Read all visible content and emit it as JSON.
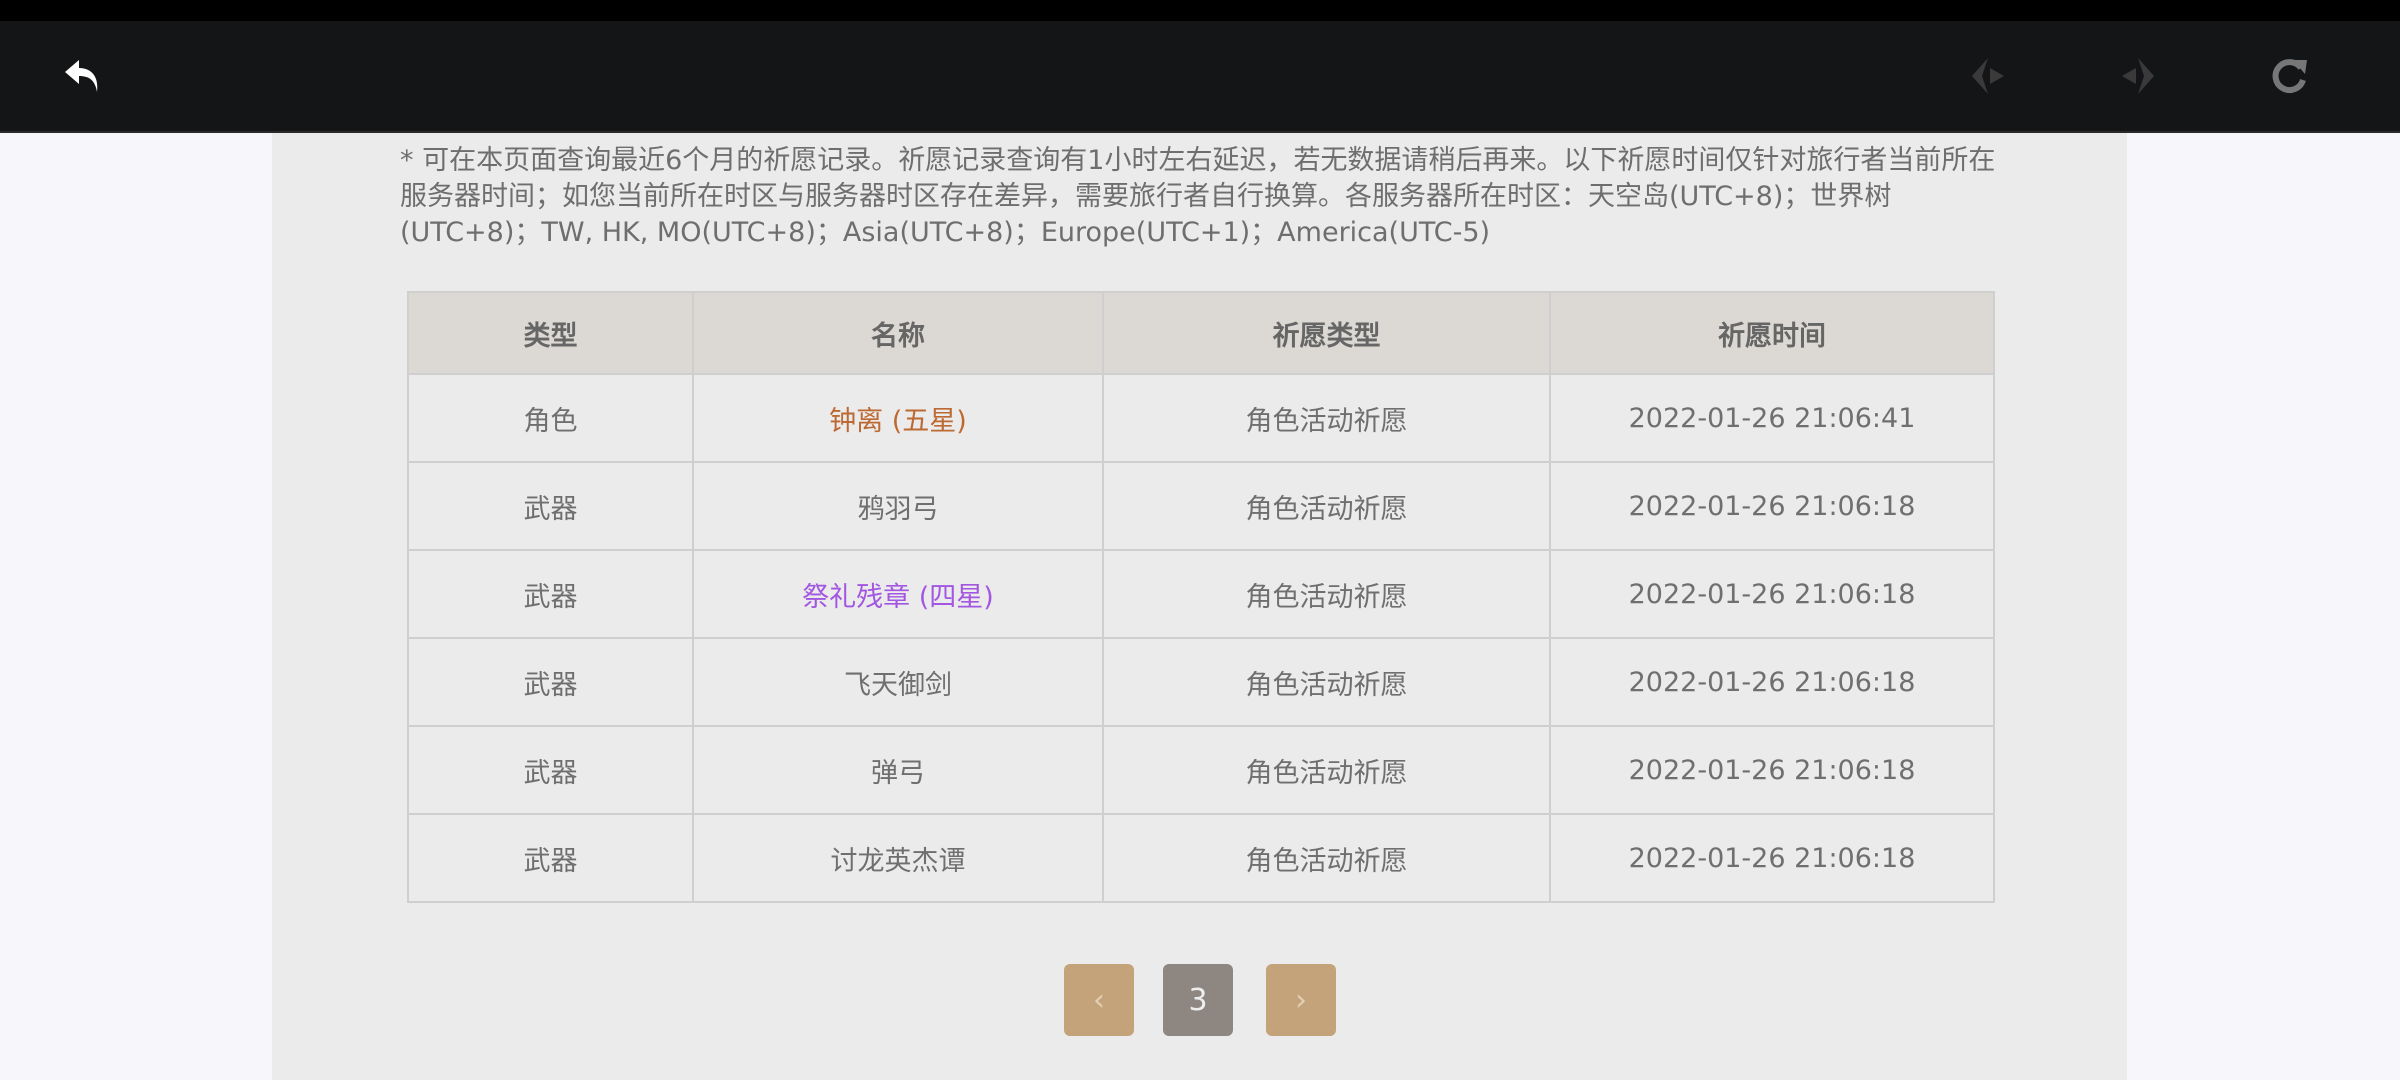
{
  "toolbar": {
    "back_icon": "back-arrow-icon",
    "prev_icon": "prev-diamond-icon",
    "next_icon": "next-diamond-icon",
    "refresh_icon": "refresh-icon"
  },
  "notice": "* 可在本页面查询最近6个月的祈愿记录。祈愿记录查询有1小时左右延迟，若无数据请稍后再来。以下祈愿时间仅针对旅行者当前所在服务器时间；如您当前所在时区与服务器时区存在差异，需要旅行者自行换算。各服务器所在时区：天空岛(UTC+8)；世界树(UTC+8)；TW, HK, MO(UTC+8)；Asia(UTC+8)；Europe(UTC+1)；America(UTC-5)",
  "table": {
    "headers": [
      "类型",
      "名称",
      "祈愿类型",
      "祈愿时间"
    ],
    "rows": [
      {
        "type": "角色",
        "name": "钟离 (五星)",
        "wish": "角色活动祈愿",
        "time": "2022-01-26 21:06:41",
        "color": "#bd6932"
      },
      {
        "type": "武器",
        "name": "鸦羽弓",
        "wish": "角色活动祈愿",
        "time": "2022-01-26 21:06:18",
        "color": "#6f6f6f"
      },
      {
        "type": "武器",
        "name": "祭礼残章 (四星)",
        "wish": "角色活动祈愿",
        "time": "2022-01-26 21:06:18",
        "color": "#a256e1"
      },
      {
        "type": "武器",
        "name": "飞天御剑",
        "wish": "角色活动祈愿",
        "time": "2022-01-26 21:06:18",
        "color": "#6f6f6f"
      },
      {
        "type": "武器",
        "name": "弹弓",
        "wish": "角色活动祈愿",
        "time": "2022-01-26 21:06:18",
        "color": "#6f6f6f"
      },
      {
        "type": "武器",
        "name": "讨龙英杰谭",
        "wish": "角色活动祈愿",
        "time": "2022-01-26 21:06:18",
        "color": "#6f6f6f"
      }
    ]
  },
  "pagination": {
    "prev": "‹",
    "current": "3",
    "next": "›",
    "button_color": "#c4a27a",
    "current_color": "#8e8680"
  }
}
